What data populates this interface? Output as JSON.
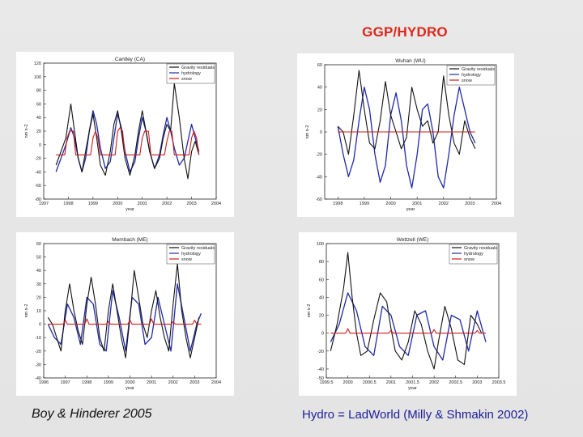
{
  "page": {
    "title": "GGP/HYDRO",
    "footer_left": "Boy & Hinderer 2005",
    "footer_right": "Hydro = LadWorld (Milly & Shmakin 2002)"
  },
  "colors": {
    "gravity": "#111111",
    "hydrology": "#1f2aa8",
    "snow": "#d11a1a",
    "title": "#e0271b",
    "footer_right": "#1c1c9a"
  },
  "chart_data": [
    {
      "type": "line",
      "title": "Cantley (CA)",
      "xlabel": "year",
      "ylabel": "nm s-2",
      "xlim": [
        1997,
        2004
      ],
      "ylim": [
        -80,
        120
      ],
      "xticks": [
        1997,
        1998,
        1999,
        2000,
        2001,
        2002,
        2003,
        2004
      ],
      "xtick_labels": [
        "1997",
        "1998",
        "1999",
        "2000",
        "2001",
        "2002",
        "2003",
        "2004"
      ],
      "yticks": [
        -80,
        -60,
        -40,
        -20,
        0,
        20,
        40,
        60,
        80,
        100,
        120
      ],
      "legend": [
        "Gravity residuals",
        "hydrology",
        "snow"
      ],
      "series": [
        {
          "name": "Gravity residuals",
          "x": [
            1997.5,
            1997.7,
            1997.9,
            1998.1,
            1998.25,
            1998.4,
            1998.55,
            1998.7,
            1998.85,
            1999.0,
            1999.15,
            1999.3,
            1999.5,
            1999.7,
            1999.85,
            2000.0,
            2000.15,
            2000.3,
            2000.5,
            2000.7,
            2000.85,
            2001.0,
            2001.15,
            2001.3,
            2001.5,
            2001.7,
            2001.85,
            2002.0,
            2002.15,
            2002.3,
            2002.5,
            2002.7,
            2002.85,
            2003.0,
            2003.15,
            2003.3
          ],
          "y": [
            -30,
            -10,
            10,
            60,
            20,
            -20,
            -40,
            -10,
            20,
            45,
            10,
            -30,
            -45,
            -10,
            30,
            50,
            20,
            -20,
            -45,
            -15,
            20,
            50,
            20,
            -10,
            -35,
            -20,
            10,
            30,
            20,
            90,
            40,
            -20,
            -50,
            -10,
            5,
            -15
          ]
        },
        {
          "name": "hydrology",
          "x": [
            1997.5,
            1997.7,
            1997.9,
            1998.1,
            1998.25,
            1998.4,
            1998.55,
            1998.7,
            1998.85,
            1999.0,
            1999.15,
            1999.3,
            1999.5,
            1999.7,
            1999.85,
            2000.0,
            2000.15,
            2000.3,
            2000.5,
            2000.7,
            2000.85,
            2001.0,
            2001.15,
            2001.3,
            2001.5,
            2001.7,
            2001.85,
            2002.0,
            2002.15,
            2002.3,
            2002.5,
            2002.7,
            2002.85,
            2003.0,
            2003.15,
            2003.3
          ],
          "y": [
            -40,
            -20,
            0,
            25,
            10,
            -20,
            -40,
            -20,
            20,
            50,
            30,
            -5,
            -35,
            -25,
            10,
            45,
            25,
            -10,
            -40,
            -25,
            10,
            40,
            20,
            -10,
            -35,
            -15,
            15,
            40,
            20,
            -5,
            -30,
            -20,
            5,
            30,
            10,
            -10
          ]
        },
        {
          "name": "snow",
          "x": [
            1997.5,
            1997.85,
            1997.95,
            1998.05,
            1998.2,
            1998.3,
            1998.9,
            1999.0,
            1999.1,
            1999.2,
            1999.3,
            1999.9,
            2000.0,
            2000.1,
            2000.2,
            2000.3,
            2000.9,
            2001.0,
            2001.1,
            2001.25,
            2001.35,
            2001.9,
            2002.0,
            2002.1,
            2002.2,
            2002.3,
            2002.9,
            2003.0,
            2003.1,
            2003.2,
            2003.3
          ],
          "y": [
            -15,
            -15,
            10,
            20,
            20,
            -15,
            -15,
            10,
            20,
            10,
            -15,
            -15,
            20,
            25,
            20,
            -15,
            -15,
            10,
            20,
            20,
            -15,
            -15,
            5,
            20,
            20,
            -15,
            -15,
            10,
            20,
            10,
            -15
          ]
        }
      ]
    },
    {
      "type": "line",
      "title": "Wuhan (WU)",
      "xlabel": "year",
      "ylabel": "nm s-2",
      "xlim": [
        1997.5,
        2004
      ],
      "ylim": [
        -60,
        60
      ],
      "xticks": [
        1998,
        1999,
        2000,
        2001,
        2002,
        2003,
        2004
      ],
      "xtick_labels": [
        "1998",
        "1999",
        "2000",
        "2001",
        "2002",
        "2003",
        "2004"
      ],
      "yticks": [
        -60,
        -40,
        -20,
        0,
        20,
        40,
        60
      ],
      "legend": [
        "Gravity residuals",
        "hydrology",
        "snow"
      ],
      "series": [
        {
          "name": "Gravity residuals",
          "x": [
            1998.0,
            1998.2,
            1998.4,
            1998.6,
            1998.8,
            1999.0,
            1999.2,
            1999.4,
            1999.6,
            1999.8,
            2000.0,
            2000.2,
            2000.4,
            2000.6,
            2000.8,
            2001.0,
            2001.2,
            2001.4,
            2001.6,
            2001.8,
            2002.0,
            2002.2,
            2002.4,
            2002.6,
            2002.8,
            2003.0,
            2003.2
          ],
          "y": [
            5,
            0,
            -20,
            15,
            55,
            20,
            -10,
            -15,
            10,
            45,
            15,
            0,
            -15,
            -5,
            40,
            20,
            5,
            10,
            -10,
            0,
            50,
            15,
            -10,
            -20,
            10,
            -5,
            -15
          ]
        },
        {
          "name": "hydrology",
          "x": [
            1998.0,
            1998.2,
            1998.4,
            1998.6,
            1998.8,
            1999.0,
            1999.2,
            1999.4,
            1999.6,
            1999.8,
            2000.0,
            2000.2,
            2000.4,
            2000.6,
            2000.8,
            2001.0,
            2001.2,
            2001.4,
            2001.6,
            2001.8,
            2002.0,
            2002.2,
            2002.4,
            2002.6,
            2002.8,
            2003.0,
            2003.2
          ],
          "y": [
            5,
            -20,
            -40,
            -25,
            10,
            40,
            20,
            -20,
            -45,
            -30,
            15,
            35,
            10,
            -30,
            -50,
            -20,
            20,
            25,
            0,
            -40,
            -50,
            -20,
            15,
            40,
            20,
            0,
            -10
          ]
        },
        {
          "name": "snow",
          "x": [
            1998.0,
            2003.2
          ],
          "y": [
            0,
            0
          ]
        }
      ]
    },
    {
      "type": "line",
      "title": "Membach (ME)",
      "xlabel": "year",
      "ylabel": "nm s-2",
      "xlim": [
        1996,
        2004
      ],
      "ylim": [
        -40,
        60
      ],
      "xticks": [
        1996,
        1997,
        1998,
        1999,
        2000,
        2001,
        2002,
        2003,
        2004
      ],
      "xtick_labels": [
        "1996",
        "1997",
        "1998",
        "1999",
        "2000",
        "2001",
        "2002",
        "2003",
        "2004"
      ],
      "yticks": [
        -40,
        -30,
        -20,
        -10,
        0,
        10,
        20,
        30,
        40,
        50,
        60
      ],
      "legend": [
        "Gravity residuals",
        "hydrology",
        "snow"
      ],
      "series": [
        {
          "name": "Gravity residuals",
          "x": [
            1996.2,
            1996.4,
            1996.6,
            1996.8,
            1997.0,
            1997.2,
            1997.4,
            1997.6,
            1997.8,
            1998.0,
            1998.2,
            1998.4,
            1998.6,
            1998.8,
            1999.0,
            1999.2,
            1999.4,
            1999.6,
            1999.8,
            2000.0,
            2000.2,
            2000.4,
            2000.6,
            2000.8,
            2001.0,
            2001.2,
            2001.4,
            2001.6,
            2001.8,
            2002.0,
            2002.2,
            2002.4,
            2002.6,
            2002.8,
            2003.0,
            2003.2
          ],
          "y": [
            5,
            0,
            -10,
            -20,
            10,
            30,
            10,
            -5,
            -15,
            15,
            35,
            15,
            -10,
            -20,
            10,
            30,
            10,
            -10,
            -25,
            5,
            40,
            20,
            0,
            -10,
            10,
            25,
            5,
            -10,
            -20,
            15,
            45,
            10,
            -10,
            -25,
            -10,
            5
          ]
        },
        {
          "name": "hydrology",
          "x": [
            1996.2,
            1996.5,
            1996.8,
            1997.1,
            1997.4,
            1997.7,
            1998.0,
            1998.3,
            1998.6,
            1998.9,
            1999.2,
            1999.5,
            1999.8,
            2000.1,
            2000.4,
            2000.7,
            2001.0,
            2001.3,
            2001.6,
            2001.9,
            2002.2,
            2002.5,
            2002.8,
            2003.1,
            2003.3
          ],
          "y": [
            0,
            -10,
            -15,
            15,
            5,
            -15,
            20,
            15,
            -15,
            -20,
            25,
            5,
            -20,
            20,
            15,
            -15,
            -10,
            20,
            0,
            -20,
            30,
            5,
            -20,
            0,
            8
          ]
        },
        {
          "name": "snow",
          "x": [
            1996.2,
            1996.9,
            1997.0,
            1997.1,
            1997.9,
            1998.0,
            1998.1,
            1998.9,
            1999.0,
            1999.1,
            1999.9,
            2000.0,
            2000.1,
            2000.9,
            2001.0,
            2001.1,
            2001.9,
            2002.0,
            2002.1,
            2002.9,
            2003.0,
            2003.1,
            2003.3
          ],
          "y": [
            0,
            0,
            3,
            0,
            0,
            4,
            0,
            0,
            2,
            0,
            0,
            3,
            0,
            0,
            4,
            0,
            0,
            2,
            0,
            0,
            3,
            0,
            0
          ]
        }
      ]
    },
    {
      "type": "line",
      "title": "Wettzell (WE)",
      "xlabel": "year",
      "ylabel": "nm s-2",
      "xlim": [
        1999.5,
        2003.5
      ],
      "ylim": [
        -50,
        100
      ],
      "xticks": [
        1999.5,
        2000,
        2000.5,
        2001,
        2001.5,
        2002,
        2002.5,
        2003,
        2003.5
      ],
      "xtick_labels": [
        "1999.5",
        "2000",
        "2000.5",
        "2001",
        "2001.5",
        "2002",
        "2002.5",
        "2003",
        "2003.5"
      ],
      "yticks": [
        -50,
        -40,
        -20,
        0,
        20,
        40,
        60,
        80,
        100
      ],
      "legend": [
        "Gravity residuals",
        "hydrology",
        "snow"
      ],
      "series": [
        {
          "name": "Gravity residuals",
          "x": [
            1999.6,
            1999.75,
            1999.9,
            2000.0,
            2000.1,
            2000.2,
            2000.3,
            2000.45,
            2000.6,
            2000.75,
            2000.9,
            2001.0,
            2001.1,
            2001.25,
            2001.4,
            2001.55,
            2001.7,
            2001.85,
            2002.0,
            2002.1,
            2002.25,
            2002.4,
            2002.55,
            2002.7,
            2002.85,
            2003.0,
            2003.1
          ],
          "y": [
            -20,
            10,
            50,
            90,
            40,
            0,
            -25,
            -20,
            15,
            45,
            35,
            5,
            -20,
            -30,
            -10,
            25,
            10,
            -20,
            -40,
            -10,
            30,
            5,
            -30,
            -35,
            20,
            10,
            0
          ]
        },
        {
          "name": "hydrology",
          "x": [
            1999.6,
            1999.8,
            2000.0,
            2000.2,
            2000.4,
            2000.6,
            2000.8,
            2001.0,
            2001.2,
            2001.4,
            2001.6,
            2001.8,
            2002.0,
            2002.2,
            2002.4,
            2002.6,
            2002.8,
            2003.0,
            2003.2
          ],
          "y": [
            -10,
            10,
            45,
            25,
            -15,
            -25,
            30,
            20,
            -15,
            -25,
            20,
            25,
            -15,
            -30,
            20,
            15,
            -20,
            25,
            -10
          ]
        },
        {
          "name": "snow",
          "x": [
            1999.6,
            1999.95,
            2000.0,
            2000.05,
            2000.95,
            2001.0,
            2001.05,
            2001.95,
            2002.0,
            2002.05,
            2002.95,
            2003.0,
            2003.05,
            2003.2
          ],
          "y": [
            0,
            0,
            5,
            0,
            0,
            3,
            0,
            0,
            4,
            0,
            0,
            3,
            0,
            0
          ]
        }
      ]
    }
  ]
}
